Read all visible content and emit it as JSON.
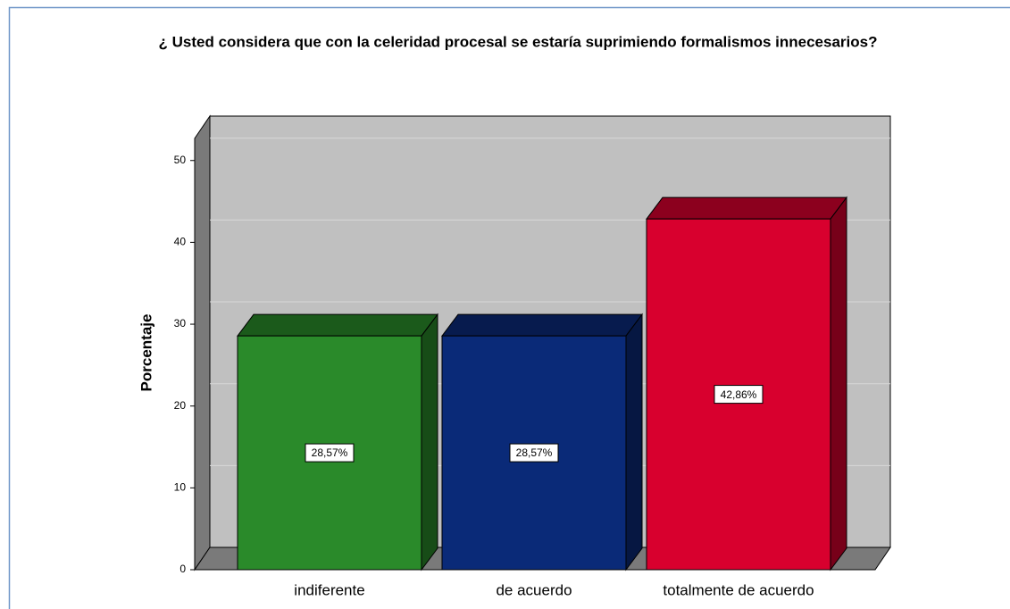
{
  "chart_data": {
    "type": "bar3d",
    "title": "¿ Usted considera que con la celeridad procesal  se  estaría suprimiendo  formalismos innecesarios?",
    "y_label": "Porcentaje",
    "categories": [
      "indiferente",
      "de acuerdo",
      "totalmente de acuerdo"
    ],
    "values": [
      28.57,
      28.57,
      42.86
    ],
    "value_labels": [
      "28,57%",
      "28,57%",
      "42,86%"
    ],
    "colors": [
      "#2a8a2a",
      "#0a2a78",
      "#d8002e"
    ],
    "ylim": [
      0,
      52.7
    ],
    "yticks": [
      0,
      10,
      20,
      30,
      40,
      50
    ],
    "grid": true
  }
}
